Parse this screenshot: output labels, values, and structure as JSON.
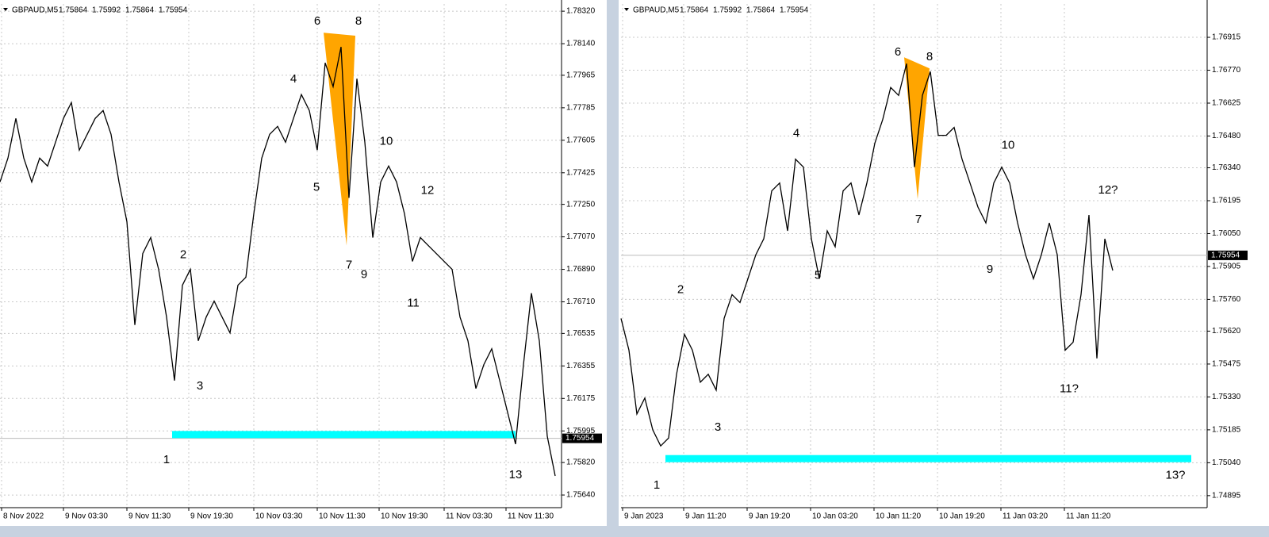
{
  "chart_data": [
    {
      "type": "line",
      "symbol": "GBPAUD,M5",
      "ohlc": [
        1.75864,
        1.75992,
        1.75864,
        1.75954
      ],
      "grid": true,
      "xlim": [
        0,
        70.8
      ],
      "ylim": [
        1.7557,
        1.7836
      ],
      "xticks": [
        {
          "value": 0.2,
          "label": "8 Nov 2022"
        },
        {
          "value": 8,
          "label": "9 Nov 03:30"
        },
        {
          "value": 16,
          "label": "9 Nov 11:30"
        },
        {
          "value": 23.8,
          "label": "9 Nov 19:30"
        },
        {
          "value": 32,
          "label": "10 Nov 03:30"
        },
        {
          "value": 40,
          "label": "10 Nov 11:30"
        },
        {
          "value": 47.8,
          "label": "10 Nov 19:30"
        },
        {
          "value": 56,
          "label": "11 Nov 03:30"
        },
        {
          "value": 63.8,
          "label": "11 Nov 11:30"
        }
      ],
      "yticks": [
        {
          "value": 1.7832,
          "label": "1.78320"
        },
        {
          "value": 1.7814,
          "label": "1.78140"
        },
        1.77965,
        1.77785,
        1.77605,
        1.77425,
        {
          "value": 1.7725,
          "label": "1.77250"
        },
        {
          "value": 1.7707,
          "label": "1.77070"
        },
        {
          "value": 1.7689,
          "label": "1.76890"
        },
        {
          "value": 1.7671,
          "label": "1.76710"
        },
        1.76535,
        1.76355,
        1.76175,
        1.75995,
        {
          "value": 1.7582,
          "label": "1.75820"
        },
        {
          "value": 1.7564,
          "label": "1.75640"
        }
      ],
      "series": [
        {
          "color": "#000000",
          "values": [
            1.77374,
            1.77506,
            1.77726,
            1.77506,
            1.77374,
            1.77506,
            1.77462,
            1.77594,
            1.77726,
            1.77814,
            1.7755,
            1.77638,
            1.77726,
            1.7777,
            1.77638,
            1.77374,
            1.77154,
            1.76582,
            1.76978,
            1.77066,
            1.7689,
            1.76626,
            1.76274,
            1.76802,
            1.7689,
            1.76494,
            1.76626,
            1.76714,
            1.76626,
            1.76538,
            1.76802,
            1.76846,
            1.77198,
            1.77506,
            1.77638,
            1.77682,
            1.77594,
            1.77726,
            1.77858,
            1.7777,
            1.7755,
            1.78034,
            1.77902,
            1.78122,
            1.77286,
            1.77946,
            1.77594,
            1.77066,
            1.77374,
            1.77462,
            1.77374,
            1.77198,
            1.76934,
            1.77066,
            1.77022,
            1.76978,
            1.76934,
            1.7689,
            1.76626,
            1.76494,
            1.7623,
            1.76362,
            1.7645,
            1.76274,
            1.76098,
            1.75922,
            1.76362,
            1.76758,
            1.76494,
            1.75966,
            1.75746
          ]
        }
      ],
      "levels": [
        {
          "y": 1.75975,
          "x": [
            21.7,
            65
          ],
          "color": "#00ffff"
        }
      ],
      "shapes": [
        {
          "points": [
            [
              40.8,
              1.78201
            ],
            [
              44.8,
              1.78184
            ],
            [
              43.7,
              1.77022
            ]
          ],
          "color": "#ffa500"
        }
      ],
      "annotations": [
        {
          "label": "1",
          "x": 21,
          "y": 1.75834
        },
        {
          "label": "2",
          "x": 23.1,
          "y": 1.76969
        },
        {
          "label": "3",
          "x": 25.2,
          "y": 1.76243
        },
        {
          "label": "4",
          "x": 37,
          "y": 1.77942
        },
        {
          "label": "5",
          "x": 39.9,
          "y": 1.77343
        },
        {
          "label": "6",
          "x": 40,
          "y": 1.78263
        },
        {
          "label": "7",
          "x": 44,
          "y": 1.76912
        },
        {
          "label": "8",
          "x": 45.2,
          "y": 1.78263
        },
        {
          "label": "9",
          "x": 45.9,
          "y": 1.76859
        },
        {
          "label": "10",
          "x": 48.7,
          "y": 1.77598
        },
        {
          "label": "11",
          "x": 52.1,
          "y": 1.76701
        },
        {
          "label": "12",
          "x": 53.9,
          "y": 1.77326
        },
        {
          "label": "13",
          "x": 65,
          "y": 1.7575
        }
      ]
    },
    {
      "type": "line",
      "symbol": "GBPAUD,M5",
      "ohlc": [
        1.75864,
        1.75992,
        1.75864,
        1.75954
      ],
      "grid": true,
      "xlim": [
        0,
        73.9
      ],
      "ylim": [
        1.74842,
        1.77062
      ],
      "xticks": [
        {
          "value": 0.2,
          "label": "9 Jan 2023"
        },
        {
          "value": 7.9,
          "label": "9 Jan 11:20"
        },
        {
          "value": 15.9,
          "label": "9 Jan 19:20"
        },
        {
          "value": 23.9,
          "label": "10 Jan 03:20"
        },
        {
          "value": 31.9,
          "label": "10 Jan 11:20"
        },
        {
          "value": 39.9,
          "label": "10 Jan 19:20"
        },
        {
          "value": 47.9,
          "label": "11 Jan 03:20"
        },
        {
          "value": 55.9,
          "label": "11 Jan 11:20"
        }
      ],
      "yticks": [
        1.76915,
        {
          "value": 1.7677,
          "label": "1.76770"
        },
        1.76625,
        {
          "value": 1.7648,
          "label": "1.76480"
        },
        {
          "value": 1.7634,
          "label": "1.76340"
        },
        1.76195,
        {
          "value": 1.7605,
          "label": "1.76050"
        },
        1.75905,
        {
          "value": 1.7576,
          "label": "1.75760"
        },
        {
          "value": 1.7562,
          "label": "1.75620"
        },
        1.75475,
        {
          "value": 1.7533,
          "label": "1.75330"
        },
        1.75185,
        {
          "value": 1.7504,
          "label": "1.75040"
        },
        1.74895
      ],
      "series": [
        {
          "color": "#000000",
          "values": [
            1.75676,
            1.75536,
            1.75255,
            1.75325,
            1.75185,
            1.75114,
            1.75149,
            1.7543,
            1.75606,
            1.75536,
            1.75395,
            1.7543,
            1.7536,
            1.75676,
            1.75781,
            1.75746,
            1.75851,
            1.75957,
            1.76027,
            1.76238,
            1.76273,
            1.76062,
            1.76378,
            1.76343,
            1.76027,
            1.75851,
            1.76062,
            1.75992,
            1.76238,
            1.76273,
            1.76132,
            1.76273,
            1.76448,
            1.76553,
            1.76694,
            1.76659,
            1.76799,
            1.76343,
            1.76659,
            1.76764,
            1.76483,
            1.76483,
            1.76518,
            1.76378,
            1.76273,
            1.76167,
            1.76097,
            1.76273,
            1.76343,
            1.76273,
            1.76097,
            1.75957,
            1.75851,
            1.75957,
            1.76097,
            1.75957,
            1.75536,
            1.75571,
            1.75781,
            1.76132,
            1.755,
            1.76027,
            1.75887
          ]
        }
      ],
      "levels": [
        {
          "y": 1.75058,
          "x": [
            5.6,
            71.9
          ],
          "color": "#00ffff"
        }
      ],
      "shapes": [
        {
          "points": [
            [
              35.7,
              1.76827
            ],
            [
              38.9,
              1.76778
            ],
            [
              37.4,
              1.76202
            ]
          ],
          "color": "#ffa500"
        }
      ],
      "annotations": [
        {
          "label": "1",
          "x": 4.5,
          "y": 1.74939
        },
        {
          "label": "2",
          "x": 7.5,
          "y": 1.75802
        },
        {
          "label": "3",
          "x": 12.2,
          "y": 1.75195
        },
        {
          "label": "4",
          "x": 22.1,
          "y": 1.7649
        },
        {
          "label": "5",
          "x": 24.8,
          "y": 1.75865
        },
        {
          "label": "6",
          "x": 34.9,
          "y": 1.76848
        },
        {
          "label": "7",
          "x": 37.5,
          "y": 1.76111
        },
        {
          "label": "8",
          "x": 38.9,
          "y": 1.76827
        },
        {
          "label": "9",
          "x": 46.5,
          "y": 1.7589
        },
        {
          "label": "10",
          "x": 48.8,
          "y": 1.76438
        },
        {
          "label": "11?",
          "x": 56.5,
          "y": 1.75364
        },
        {
          "label": "12?",
          "x": 61.4,
          "y": 1.76241
        },
        {
          "label": "13?",
          "x": 69.9,
          "y": 1.74984
        }
      ]
    }
  ]
}
